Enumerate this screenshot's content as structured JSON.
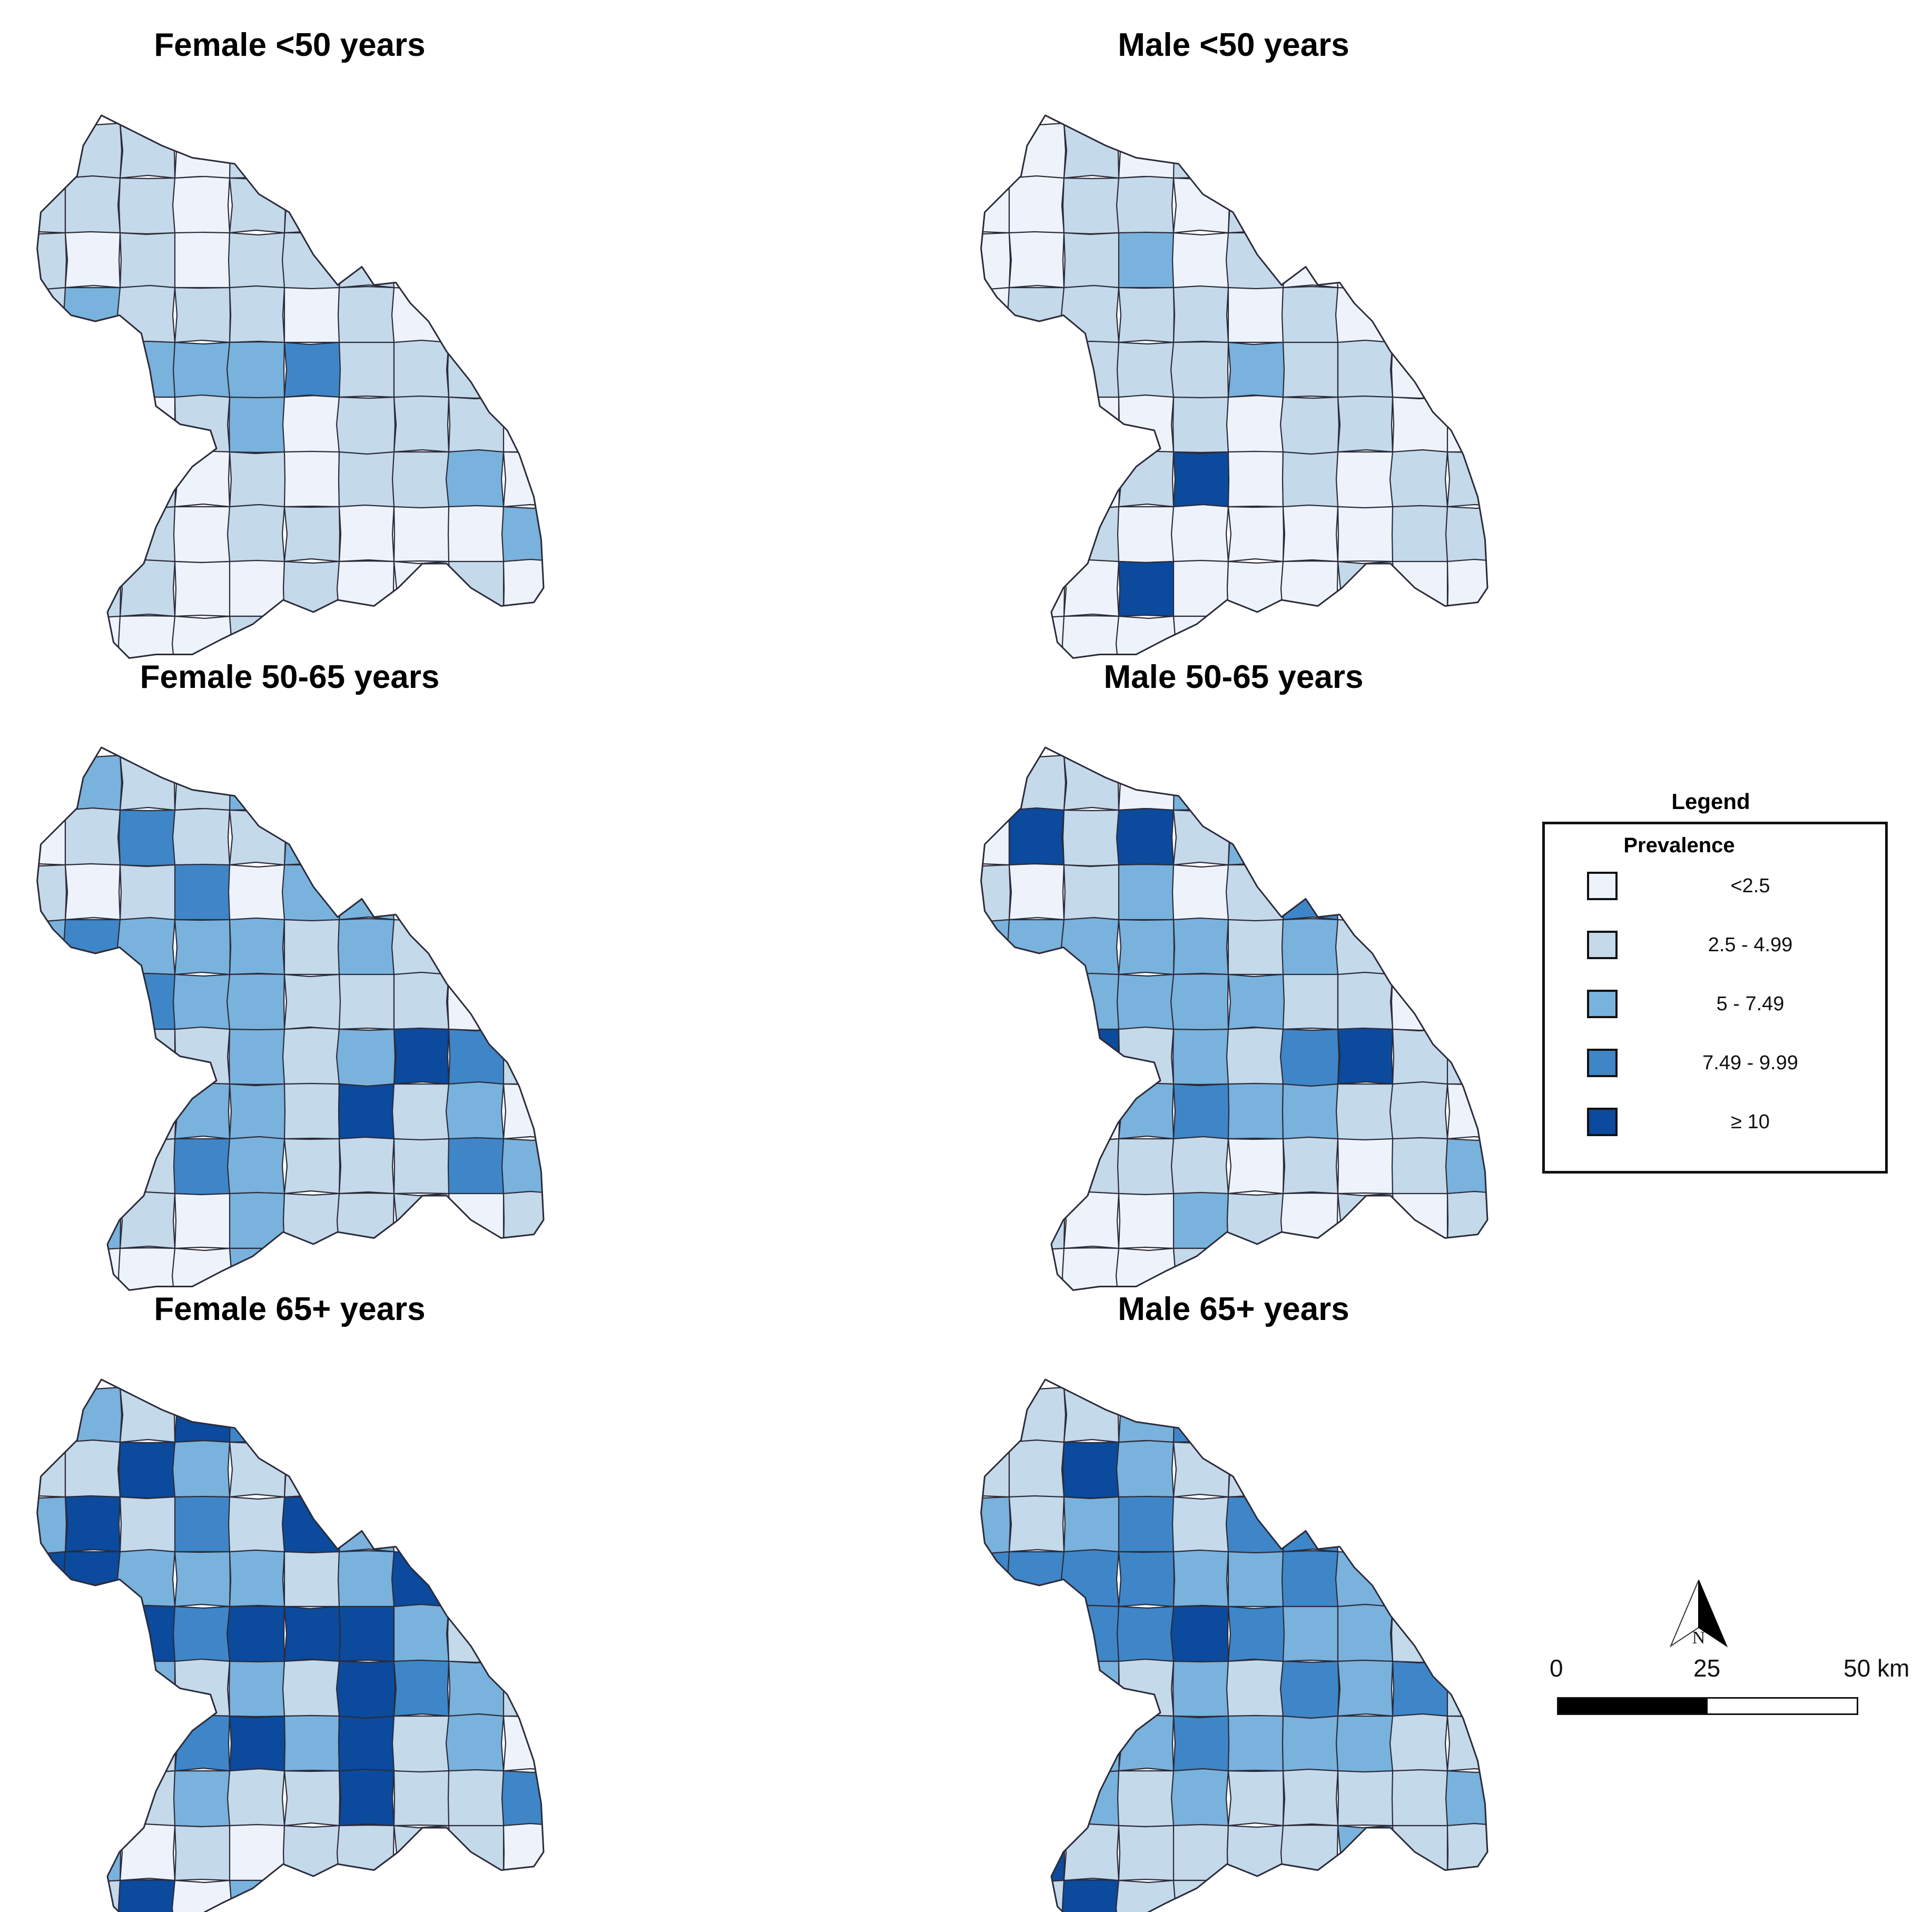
{
  "panels": [
    {
      "id": "f-under50",
      "title": "Female <50 years",
      "classes": [
        1,
        1,
        0,
        1,
        1,
        1,
        1,
        0,
        1,
        1,
        1,
        0,
        1,
        0,
        1,
        1,
        1,
        1,
        2,
        1,
        1,
        1,
        0,
        1,
        0,
        2,
        2,
        2,
        3,
        1,
        1,
        1,
        0,
        1,
        2,
        0,
        1,
        1,
        1,
        0,
        1,
        0,
        1,
        0,
        1,
        1,
        2,
        0,
        1,
        0,
        1,
        1,
        0,
        0,
        0,
        2,
        1,
        1,
        0,
        0,
        1,
        0,
        0,
        1,
        0,
        0,
        0,
        0
      ]
    },
    {
      "id": "m-under50",
      "title": "Male <50 years",
      "classes": [
        0,
        1,
        0,
        1,
        0,
        0,
        1,
        1,
        0,
        1,
        0,
        0,
        1,
        2,
        0,
        1,
        0,
        0,
        1,
        1,
        1,
        1,
        0,
        1,
        0,
        1,
        1,
        1,
        2,
        1,
        1,
        0,
        0,
        0,
        1,
        0,
        1,
        1,
        0,
        0,
        0,
        1,
        4,
        0,
        1,
        0,
        1,
        1,
        1,
        0,
        0,
        0,
        0,
        0,
        1,
        1,
        0,
        0,
        4,
        0,
        0,
        0,
        1,
        0,
        0,
        0,
        0,
        0
      ]
    },
    {
      "id": "f-50-65",
      "title": "Female 50-65 years",
      "classes": [
        2,
        1,
        1,
        2,
        0,
        1,
        3,
        1,
        1,
        2,
        1,
        0,
        1,
        3,
        0,
        2,
        2,
        2,
        3,
        2,
        2,
        2,
        1,
        2,
        1,
        3,
        2,
        2,
        1,
        1,
        1,
        0,
        1,
        1,
        2,
        1,
        2,
        4,
        3,
        1,
        1,
        2,
        2,
        1,
        4,
        1,
        2,
        0,
        1,
        3,
        2,
        1,
        1,
        1,
        3,
        2,
        2,
        1,
        0,
        2,
        1,
        1,
        1,
        0,
        1,
        0,
        0,
        0
      ]
    },
    {
      "id": "m-50-65",
      "title": "Male 50-65 years",
      "classes": [
        1,
        1,
        0,
        2,
        0,
        4,
        1,
        4,
        1,
        2,
        1,
        0,
        1,
        2,
        0,
        1,
        3,
        2,
        2,
        2,
        2,
        2,
        1,
        2,
        1,
        2,
        2,
        2,
        2,
        1,
        1,
        0,
        4,
        1,
        2,
        1,
        3,
        4,
        1,
        1,
        0,
        2,
        3,
        2,
        2,
        1,
        1,
        0,
        1,
        1,
        1,
        0,
        1,
        0,
        1,
        2,
        1,
        0,
        0,
        2,
        1,
        0,
        1,
        0,
        1,
        0,
        0,
        0
      ]
    },
    {
      "id": "f-65plus",
      "title": "Female 65+ years",
      "classes": [
        2,
        1,
        4,
        3,
        1,
        1,
        4,
        2,
        1,
        1,
        2,
        4,
        1,
        3,
        1,
        4,
        2,
        4,
        4,
        2,
        2,
        2,
        1,
        2,
        4,
        4,
        3,
        4,
        4,
        4,
        2,
        1,
        2,
        1,
        2,
        1,
        4,
        3,
        2,
        1,
        1,
        3,
        4,
        2,
        4,
        1,
        2,
        0,
        1,
        2,
        1,
        1,
        4,
        1,
        1,
        3,
        2,
        0,
        1,
        0,
        1,
        1,
        1,
        1,
        0,
        1,
        4,
        0
      ]
    },
    {
      "id": "m-65plus",
      "title": "Male 65+ years",
      "classes": [
        1,
        1,
        2,
        3,
        1,
        1,
        4,
        2,
        1,
        1,
        2,
        1,
        2,
        3,
        1,
        3,
        3,
        3,
        3,
        3,
        3,
        2,
        2,
        3,
        2,
        3,
        3,
        4,
        3,
        2,
        2,
        1,
        2,
        1,
        2,
        1,
        3,
        2,
        3,
        1,
        2,
        2,
        3,
        2,
        2,
        2,
        1,
        1,
        2,
        1,
        2,
        1,
        1,
        1,
        1,
        2,
        4,
        1,
        1,
        1,
        1,
        1,
        2,
        1,
        1,
        1,
        4,
        1
      ]
    }
  ],
  "legend": {
    "heading": "Legend",
    "subtitle": "Prevalence",
    "items": [
      {
        "label": "<2.5",
        "color": "#eef3fb"
      },
      {
        "label": "2.5 - 4.99",
        "color": "#c4d9ea"
      },
      {
        "label": "5 - 7.49",
        "color": "#79b2dc"
      },
      {
        "label": "7.49 - 9.99",
        "color": "#3e86c7"
      },
      {
        "label": "≥ 10",
        "color": "#0b4a9c"
      }
    ]
  },
  "scale_bar": {
    "labels": [
      "0",
      "25",
      "50 km"
    ]
  },
  "north_arrow": {
    "label": "N"
  }
}
